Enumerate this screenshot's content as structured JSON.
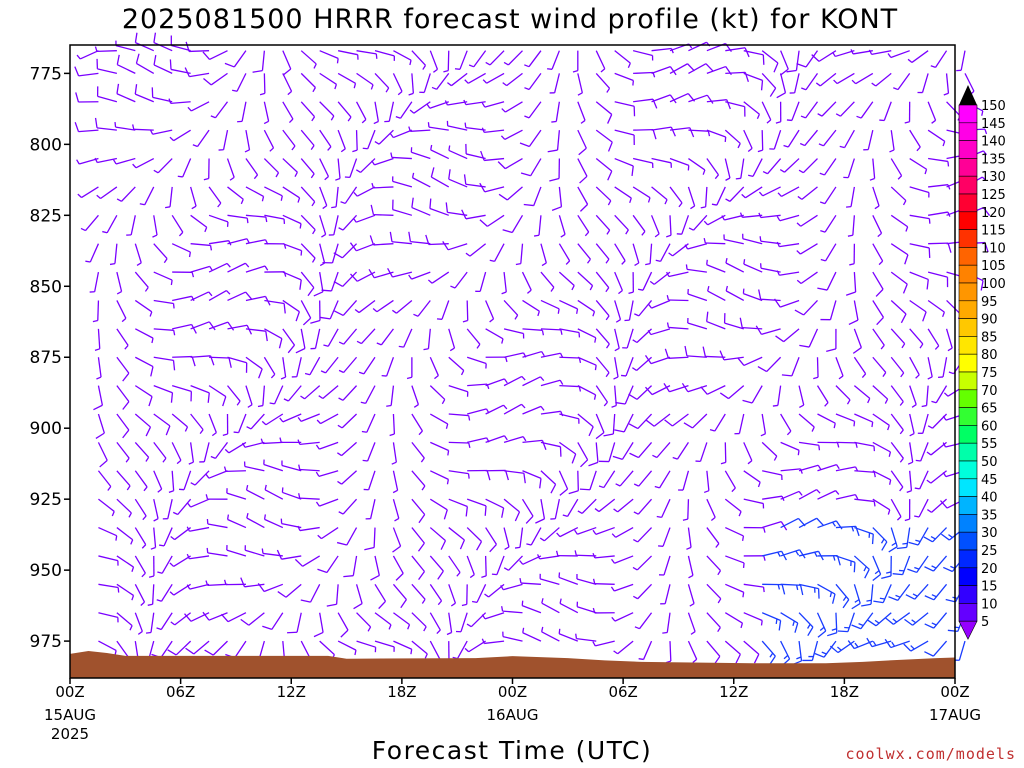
{
  "chart_data": {
    "type": "wind-barb-time-height",
    "title": "2025081500 HRRR forecast wind profile (kt) for KONT",
    "xlabel": "Forecast Time (UTC)",
    "ylabel": "",
    "watermark": "coolwx.com/models",
    "x_range_hours": [
      0,
      48
    ],
    "y_range_hpa": [
      765,
      988
    ],
    "x_ticks": [
      {
        "hour": 0,
        "label": "00Z",
        "date": "15AUG",
        "year": "2025"
      },
      {
        "hour": 6,
        "label": "06Z",
        "date": "",
        "year": ""
      },
      {
        "hour": 12,
        "label": "12Z",
        "date": "",
        "year": ""
      },
      {
        "hour": 18,
        "label": "18Z",
        "date": "",
        "year": ""
      },
      {
        "hour": 24,
        "label": "00Z",
        "date": "16AUG",
        "year": ""
      },
      {
        "hour": 30,
        "label": "06Z",
        "date": "",
        "year": ""
      },
      {
        "hour": 36,
        "label": "12Z",
        "date": "",
        "year": ""
      },
      {
        "hour": 42,
        "label": "18Z",
        "date": "",
        "year": ""
      },
      {
        "hour": 48,
        "label": "00Z",
        "date": "17AUG",
        "year": ""
      }
    ],
    "y_ticks": [
      {
        "value": 775,
        "label": "775"
      },
      {
        "value": 800,
        "label": "800"
      },
      {
        "value": 825,
        "label": "825"
      },
      {
        "value": 850,
        "label": "850"
      },
      {
        "value": 875,
        "label": "875"
      },
      {
        "value": 900,
        "label": "900"
      },
      {
        "value": 925,
        "label": "925"
      },
      {
        "value": 950,
        "label": "950"
      },
      {
        "value": 975,
        "label": "975"
      }
    ],
    "surface_pressure": [
      {
        "hour": 0,
        "hpa": 979.5
      },
      {
        "hour": 1,
        "hpa": 978.5
      },
      {
        "hour": 2,
        "hpa": 979.2
      },
      {
        "hour": 3,
        "hpa": 980.2
      },
      {
        "hour": 14,
        "hpa": 980.2
      },
      {
        "hour": 15,
        "hpa": 981.2
      },
      {
        "hour": 22,
        "hpa": 981.0
      },
      {
        "hour": 24,
        "hpa": 980.3
      },
      {
        "hour": 27,
        "hpa": 981.0
      },
      {
        "hour": 29,
        "hpa": 981.8
      },
      {
        "hour": 31,
        "hpa": 982.3
      },
      {
        "hour": 37,
        "hpa": 982.8
      },
      {
        "hour": 41,
        "hpa": 982.8
      },
      {
        "hour": 43,
        "hpa": 982.3
      },
      {
        "hour": 45,
        "hpa": 981.6
      },
      {
        "hour": 47,
        "hpa": 981.0
      },
      {
        "hour": 48,
        "hpa": 980.8
      }
    ],
    "colorbar": {
      "labels": [
        "150",
        "145",
        "140",
        "135",
        "130",
        "125",
        "120",
        "115",
        "110",
        "105",
        "100",
        "95",
        "90",
        "85",
        "80",
        "75",
        "70",
        "65",
        "60",
        "55",
        "50",
        "45",
        "40",
        "35",
        "30",
        "25",
        "20",
        "15",
        "10",
        "5"
      ],
      "colors": [
        "#ff00ff",
        "#ff00e6",
        "#ff00c8",
        "#ff0096",
        "#ff0064",
        "#ff0032",
        "#ff0000",
        "#ff3200",
        "#ff6400",
        "#ff8200",
        "#ff9600",
        "#ffaa00",
        "#ffc800",
        "#ffe600",
        "#ffff00",
        "#c8ff00",
        "#64ff00",
        "#32ff32",
        "#00ff64",
        "#00ffaa",
        "#00ffdc",
        "#00e6ff",
        "#00b4ff",
        "#0082ff",
        "#0050ff",
        "#0028ff",
        "#0000ff",
        "#3200ff",
        "#6400ff",
        "#9600ff"
      ]
    },
    "barb_grid": {
      "hours_from": 1,
      "hours_to": 48,
      "hours_step": 1,
      "levels_hpa": [
        767,
        775,
        785,
        795,
        805,
        815,
        825,
        835,
        845,
        855,
        865,
        875,
        885,
        895,
        905,
        915,
        925,
        935,
        945,
        955,
        965,
        975
      ],
      "speed_kt_range": [
        5,
        30
      ],
      "color_slow": "#7a00ff",
      "color_fast": "#1a3cff"
    }
  }
}
